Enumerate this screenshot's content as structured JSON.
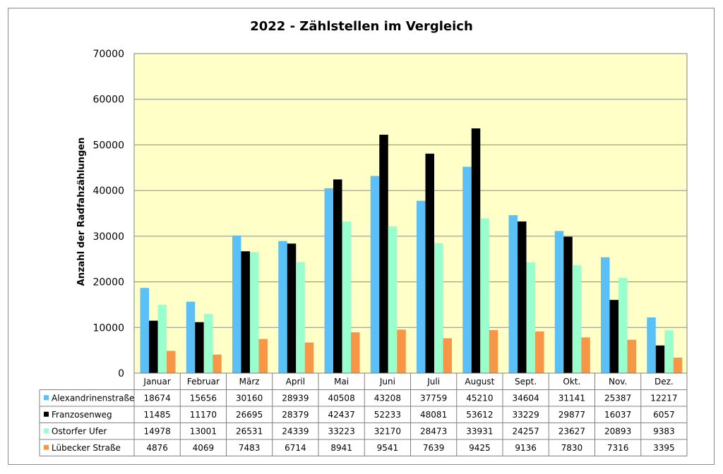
{
  "chart_data": {
    "type": "bar",
    "title": "2022 - Zählstellen im Vergleich",
    "ylabel": "Anzahl der Radfahzählungen",
    "ylim": [
      0,
      70000
    ],
    "yticks": [
      "0",
      "10000",
      "20000",
      "30000",
      "40000",
      "50000",
      "60000",
      "70000"
    ],
    "grid": true,
    "legend": "data-table-left",
    "plot_background": "#ffffc8",
    "categories": [
      "Januar",
      "Februar",
      "März",
      "April",
      "Mai",
      "Juni",
      "Juli",
      "August",
      "Sept.",
      "Okt.",
      "Nov.",
      "Dez."
    ],
    "series": [
      {
        "name": "Alexandrinenstraße",
        "color": "#5bc0f8",
        "values": [
          18674,
          15656,
          30160,
          28939,
          40508,
          43208,
          37759,
          45210,
          34604,
          31141,
          25387,
          12217
        ]
      },
      {
        "name": "Franzosenweg",
        "color": "#000000",
        "values": [
          11485,
          11170,
          26695,
          28379,
          42437,
          52233,
          48081,
          53612,
          33229,
          29877,
          16037,
          6057
        ]
      },
      {
        "name": "Ostorfer Ufer",
        "color": "#99ffcc",
        "values": [
          14978,
          13001,
          26531,
          24339,
          33223,
          32170,
          28473,
          33931,
          24257,
          23627,
          20893,
          9383
        ]
      },
      {
        "name": "Lübecker Straße",
        "color": "#f79646",
        "values": [
          4876,
          4069,
          7483,
          6714,
          8941,
          9541,
          7639,
          9425,
          9136,
          7830,
          7316,
          3395
        ]
      }
    ]
  }
}
